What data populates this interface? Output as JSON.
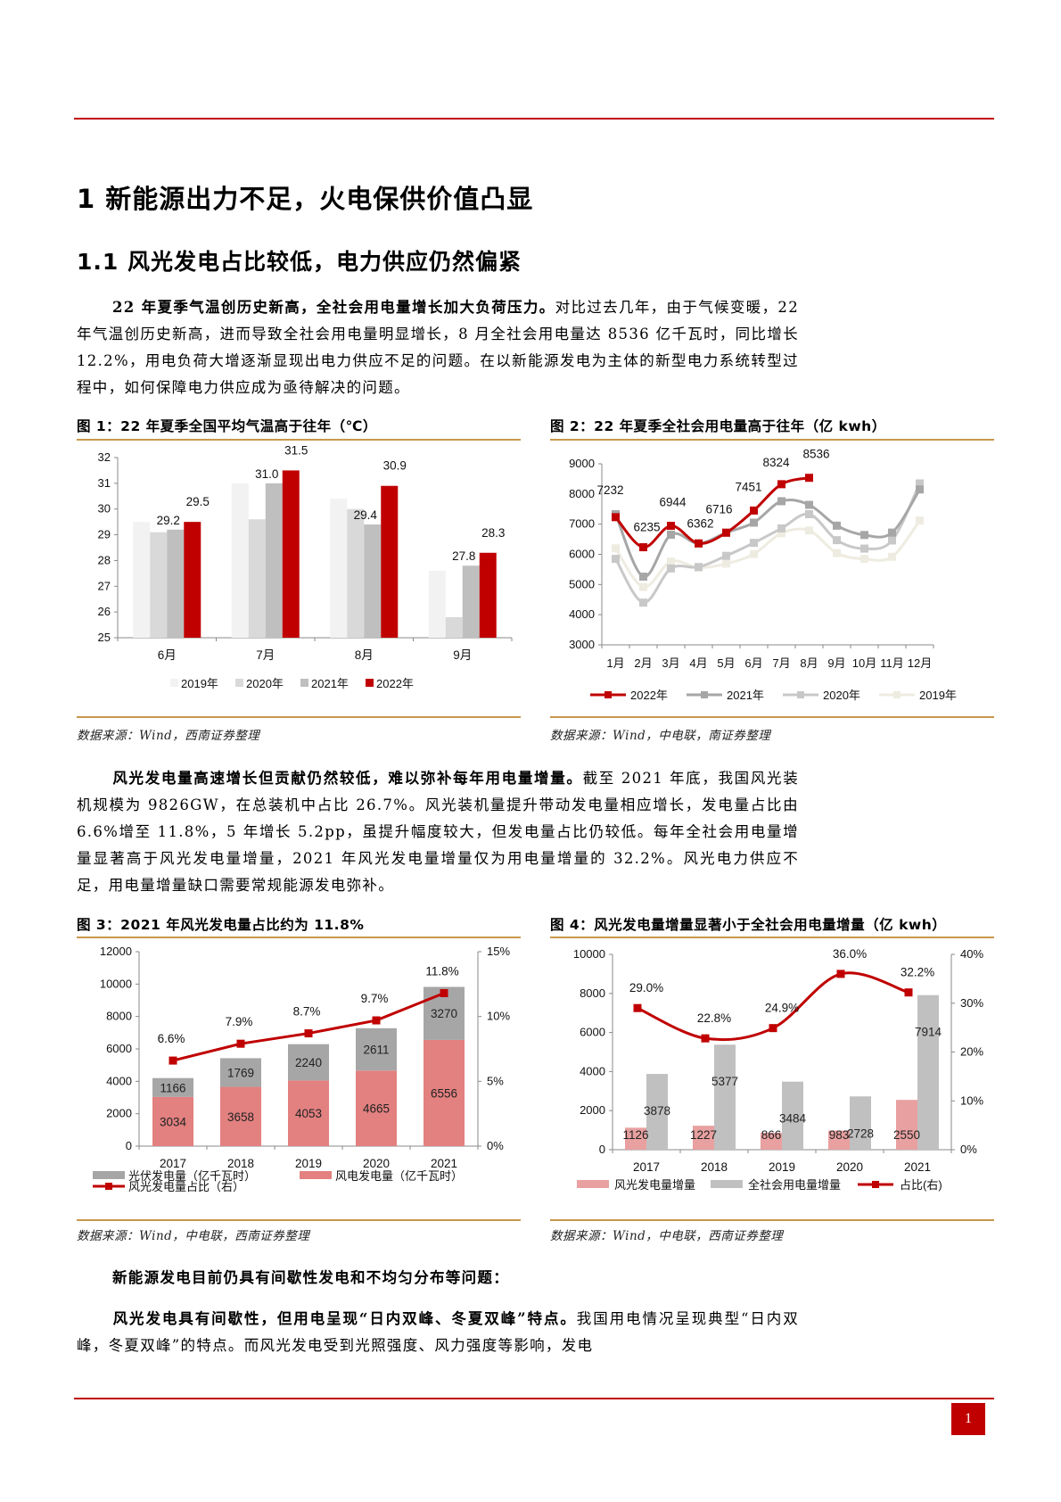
{
  "headings": {
    "h1": "1 新能源出力不足，火电保供价值凸显",
    "h2": "1.1 风光发电占比较低，电力供应仍然偏紧"
  },
  "paragraphs": {
    "p1_lead": "22 年夏季气温创历史新高，全社会用电量增长加大负荷压力。",
    "p1_body": "对比过去几年，由于气候变暖，22 年气温创历史新高，进而导致全社会用电量明显增长，8 月全社会用电量达 8536 亿千瓦时，同比增长 12.2%，用电负荷大增逐渐显现出电力供应不足的问题。在以新能源发电为主体的新型电力系统转型过程中，如何保障电力供应成为亟待解决的问题。",
    "p2_lead": "风光发电量高速增长但贡献仍然较低，难以弥补每年用电量增量。",
    "p2_body": "截至 2021 年底，我国风光装机规模为 9826GW，在总装机中占比 26.7%。风光装机量提升带动发电量相应增长，发电量占比由 6.6%增至 11.8%，5 年增长 5.2pp，虽提升幅度较大，但发电量占比仍较低。每年全社会用电量增量显著高于风光发电量增量，2021 年风光发电量增量仅为用电量增量的 32.2%。风光电力供应不足，用电量增量缺口需要常规能源发电弥补。",
    "p3_lead": "新能源发电目前仍具有间歇性发电和不均匀分布等问题：",
    "p4_lead": "风光发电具有间歇性，但用电呈现“日内双峰、冬夏双峰”特点。",
    "p4_body": "我国用电情况呈现典型“日内双峰，冬夏双峰”的特点。而风光发电受到光照强度、风力强度等影响，发电"
  },
  "figures": {
    "fig1": {
      "title": "图 1：22 年夏季全国平均气温高于往年（℃）",
      "source": "数据来源：Wind，西南证券整理"
    },
    "fig2": {
      "title": "图 2：22 年夏季全社会用电量高于往年（亿 kwh）",
      "source": "数据来源：Wind，中电联，南证券整理"
    },
    "fig3": {
      "title": "图 3：2021 年风光发电量占比约为 11.8%",
      "source": "数据来源：Wind，中电联，西南证券整理"
    },
    "fig4": {
      "title": "图 4：风光发电量增量显著小于全社会用电量增量（亿 kwh）",
      "source": "数据来源：Wind，中电联，西南证券整理"
    }
  },
  "page_number": "1",
  "colors": {
    "accent_red": "#c00000",
    "gold_rule": "#c9974a",
    "wind_pink": "#e38080",
    "solar_gray": "#a6a6a6"
  },
  "chart_data": [
    {
      "type": "bar",
      "title": "图 1：22 年夏季全国平均气温高于往年（℃）",
      "categories": [
        "6月",
        "7月",
        "8月",
        "9月"
      ],
      "series": [
        {
          "name": "2019年",
          "values": [
            29.5,
            31.0,
            30.4,
            27.6
          ],
          "color": "#f2f2f2"
        },
        {
          "name": "2020年",
          "values": [
            29.1,
            29.6,
            30.0,
            25.8
          ],
          "color": "#d9d9d9"
        },
        {
          "name": "2021年",
          "values": [
            29.2,
            31.0,
            29.4,
            27.8
          ],
          "color": "#bfbfbf"
        },
        {
          "name": "2022年",
          "values": [
            29.5,
            31.5,
            30.9,
            28.3
          ],
          "color": "#c00000"
        }
      ],
      "data_labels": {
        "2021年": [
          "29.2",
          "31.0",
          "29.4",
          "27.8"
        ],
        "2022年": [
          "29.5",
          "31.5",
          "30.9",
          "28.3"
        ]
      },
      "ylim": [
        25,
        32
      ],
      "yticks": [
        "25",
        "26",
        "27",
        "28",
        "29",
        "30",
        "31",
        "32"
      ],
      "legend": [
        "2019年",
        "2020年",
        "2021年",
        "2022年"
      ],
      "legend_position": "bottom",
      "grid": false
    },
    {
      "type": "line",
      "title": "图 2：22 年夏季全社会用电量高于往年（亿 kwh）",
      "categories": [
        "1月",
        "2月",
        "3月",
        "4月",
        "5月",
        "6月",
        "7月",
        "8月",
        "9月",
        "10月",
        "11月",
        "12月"
      ],
      "series": [
        {
          "name": "2022年",
          "values": [
            7232,
            6235,
            6944,
            6362,
            6716,
            7451,
            8324,
            8536,
            null,
            null,
            null,
            null
          ],
          "color": "#c00000"
        },
        {
          "name": "2021年",
          "values": [
            7330,
            5260,
            6650,
            6360,
            6720,
            7050,
            7760,
            7640,
            6950,
            6640,
            6720,
            8150
          ],
          "color": "#a6a6a6"
        },
        {
          "name": "2020年",
          "values": [
            5850,
            4400,
            5530,
            5580,
            5950,
            6380,
            6860,
            7330,
            6470,
            6190,
            6460,
            8350
          ],
          "color": "#c8c8c8"
        },
        {
          "name": "2019年",
          "values": [
            6200,
            4920,
            5760,
            5560,
            5690,
            6010,
            6700,
            6790,
            6040,
            5850,
            5920,
            7120
          ],
          "color": "#eeece1"
        }
      ],
      "data_labels": {
        "2022年": [
          "7232",
          "6235",
          "6944",
          "6362",
          "6716",
          "7451",
          "8324",
          "8536"
        ]
      },
      "ylim": [
        3000,
        9000
      ],
      "yticks": [
        "3000",
        "4000",
        "5000",
        "6000",
        "7000",
        "8000",
        "9000"
      ],
      "legend": [
        "2022年",
        "2021年",
        "2020年",
        "2019年"
      ],
      "legend_position": "bottom",
      "grid": false
    },
    {
      "type": "bar",
      "stacked": true,
      "title": "图 3：2021 年风光发电量占比约为 11.8%",
      "categories": [
        "2017",
        "2018",
        "2019",
        "2020",
        "2021"
      ],
      "series": [
        {
          "name": "风电发电量（亿千瓦时）",
          "values": [
            3034,
            3658,
            4053,
            4665,
            6556
          ],
          "color": "#e38080"
        },
        {
          "name": "光伏发电量（亿千瓦时）",
          "values": [
            1166,
            1769,
            2240,
            2611,
            3270
          ],
          "color": "#a6a6a6"
        },
        {
          "name": "风光发电量占比（右）",
          "type": "line",
          "axis": "right",
          "values": [
            6.6,
            7.9,
            8.7,
            9.7,
            11.8
          ],
          "labels": [
            "6.6%",
            "7.9%",
            "8.7%",
            "9.7%",
            "11.8%"
          ],
          "color": "#c00000"
        }
      ],
      "ylim": [
        0,
        12000
      ],
      "yticks": [
        "0",
        "2000",
        "4000",
        "6000",
        "8000",
        "10000",
        "12000"
      ],
      "y2lim": [
        0,
        15
      ],
      "y2ticks": [
        "0%",
        "5%",
        "10%",
        "15%"
      ],
      "legend": [
        "光伏发电量（亿千瓦时）",
        "风电发电量（亿千瓦时）",
        "风光发电量占比（右）"
      ],
      "legend_position": "bottom",
      "grid": false
    },
    {
      "type": "bar",
      "title": "图 4：风光发电量增量显著小于全社会用电量增量（亿 kwh）",
      "categories": [
        "2017",
        "2018",
        "2019",
        "2020",
        "2021"
      ],
      "series": [
        {
          "name": "风光发电量增量",
          "values": [
            1126,
            1227,
            866,
            983,
            2550
          ],
          "color": "#e8a0a0"
        },
        {
          "name": "全社会用电量增量",
          "values": [
            3878,
            5377,
            3484,
            2728,
            7914
          ],
          "color": "#c0c0c0"
        },
        {
          "name": "占比(右)",
          "type": "line",
          "axis": "right",
          "values": [
            29.0,
            22.8,
            24.9,
            36.0,
            32.2
          ],
          "labels": [
            "29.0%",
            "22.8%",
            "24.9%",
            "36.0%",
            "32.2%"
          ],
          "color": "#c00000"
        }
      ],
      "ylim": [
        0,
        10000
      ],
      "yticks": [
        "0",
        "2000",
        "4000",
        "6000",
        "8000",
        "10000"
      ],
      "y2lim": [
        0,
        40
      ],
      "y2ticks": [
        "0%",
        "10%",
        "20%",
        "30%",
        "40%"
      ],
      "legend": [
        "风光发电量增量",
        "全社会用电量增量",
        "占比(右)"
      ],
      "legend_position": "bottom",
      "grid": false
    }
  ]
}
